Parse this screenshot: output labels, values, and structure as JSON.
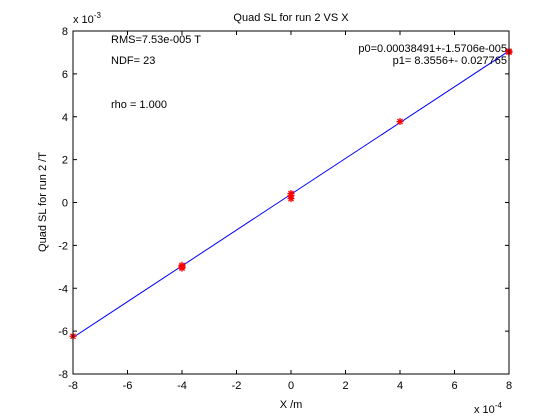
{
  "chart_data": {
    "type": "scatter",
    "title": "Quad SL for run 2 VS X",
    "xlabel": "X /m",
    "ylabel": "Quad SL for run 2 /T",
    "x_scale_label": "x 10",
    "x_scale_exp": "-4",
    "y_scale_label": "x 10",
    "y_scale_exp": "-3",
    "xlim": [
      -8,
      8
    ],
    "ylim": [
      -8,
      8
    ],
    "xticks": [
      -8,
      -6,
      -4,
      -2,
      0,
      2,
      4,
      6,
      8
    ],
    "yticks": [
      -8,
      -6,
      -4,
      -2,
      0,
      2,
      4,
      6,
      8
    ],
    "grid": false,
    "points": [
      {
        "x": -8,
        "y": -6.24
      },
      {
        "x": -4,
        "y": -2.93
      },
      {
        "x": -4,
        "y": -3.0
      },
      {
        "x": -4,
        "y": -3.06
      },
      {
        "x": 0,
        "y": 0.42
      },
      {
        "x": 0,
        "y": 0.33
      },
      {
        "x": 0,
        "y": 0.18
      },
      {
        "x": 4,
        "y": 3.78
      },
      {
        "x": 8,
        "y": 7.06
      },
      {
        "x": 8,
        "y": 7.01
      }
    ],
    "fit_line": {
      "x": [
        -8,
        8
      ],
      "y": [
        -6.298,
        7.068
      ]
    },
    "marker_color": "#ff0000",
    "line_color": "#0000ff",
    "annotations": {
      "rms": "RMS=7.53e-005 T",
      "ndf": "NDF=   23",
      "rho": "rho     =  1.000",
      "p0": "p0=0.00038491+-1.5706e-005",
      "p1": "p1=   8.3556+- 0.027765"
    }
  }
}
